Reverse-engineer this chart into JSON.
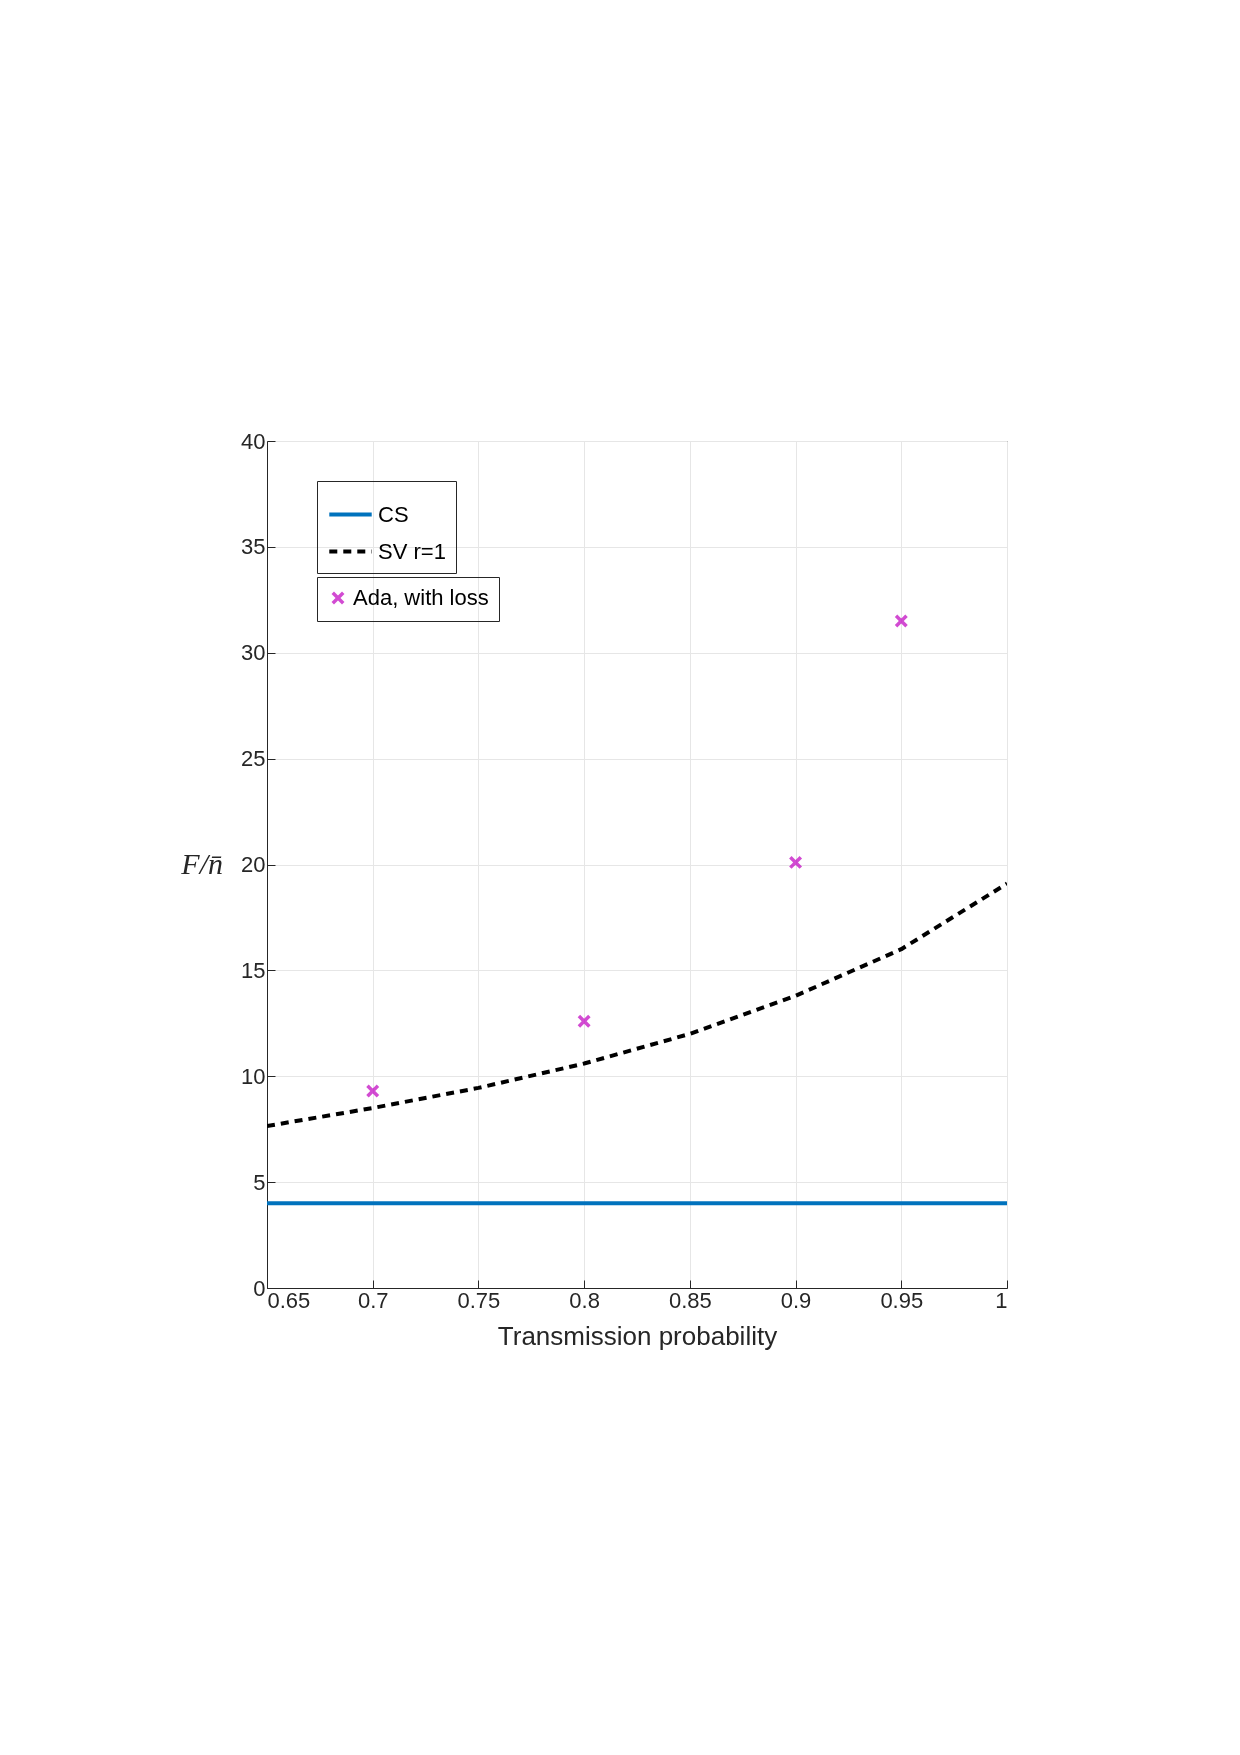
{
  "chart_data": {
    "type": "line",
    "xlabel": "Transmission probability",
    "ylabel": "F/n̄",
    "xlim": [
      0.65,
      1
    ],
    "xticks": [
      0.65,
      0.7,
      0.75,
      0.8,
      0.85,
      0.9,
      0.95,
      1
    ],
    "ylim": [
      0,
      40
    ],
    "yticks": [
      0,
      5,
      10,
      15,
      20,
      25,
      30,
      35,
      40
    ],
    "grid": true,
    "legend": "top left",
    "series": [
      {
        "name": "CS",
        "type": "line",
        "color": "#0072bd",
        "line_style": "solid",
        "x": [
          0.65,
          1
        ],
        "values": [
          4,
          4
        ]
      },
      {
        "name": "SV r=1",
        "type": "line",
        "color": "#000000",
        "line_style": "dashed",
        "x": [
          0.65,
          0.7,
          0.75,
          0.8,
          0.85,
          0.9,
          0.95,
          1
        ],
        "values": [
          7.65,
          8.5,
          9.45,
          10.6,
          12.0,
          13.8,
          16.0,
          19.1
        ]
      },
      {
        "name": "Ada, with loss",
        "type": "scatter",
        "color": "#c000c0",
        "marker": "cross",
        "x": [
          0.7,
          0.8,
          0.9,
          0.95
        ],
        "values": [
          9.3,
          12.6,
          20.1,
          31.5
        ]
      }
    ]
  }
}
